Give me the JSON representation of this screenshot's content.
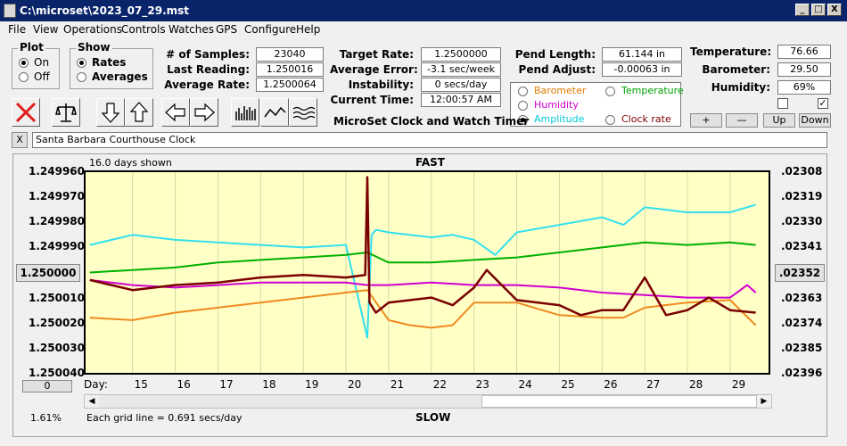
{
  "window": {
    "title": "C:\\microset\\2023_07_29.mst",
    "buttons": [
      "_",
      "□",
      "X"
    ]
  },
  "menu": [
    "File",
    "View",
    "Operations",
    "Controls",
    "Watches",
    "GPS",
    "Configure",
    "Help"
  ],
  "plot_group": {
    "legend": "Plot",
    "options": [
      "On",
      "Off"
    ],
    "selected": "On"
  },
  "show_group": {
    "legend": "Show",
    "options": [
      "Rates",
      "Averages"
    ],
    "selected": "Rates"
  },
  "stats1": [
    {
      "label": "# of Samples:",
      "value": "23040"
    },
    {
      "label": "Last Reading:",
      "value": "1.250016"
    },
    {
      "label": "Average Rate:",
      "value": "1.2500064"
    }
  ],
  "stats2": [
    {
      "label": "Target Rate:",
      "value": "1.2500000"
    },
    {
      "label": "Average Error:",
      "value": "-3.1 sec/week"
    },
    {
      "label": "Instability:",
      "value": "0 secs/day"
    },
    {
      "label": "Current Time:",
      "value": "12:00:57 AM"
    }
  ],
  "stats3": [
    {
      "label": "Pend Length:",
      "value": "61.144 in"
    },
    {
      "label": "Pend Adjust:",
      "value": "-0.00063 in"
    }
  ],
  "stats4": [
    {
      "label": "Temperature:",
      "value": "76.66"
    },
    {
      "label": "Barometer:",
      "value": "29.50"
    },
    {
      "label": "Humidity:",
      "value": "69%"
    }
  ],
  "app_name": "MicroSet Clock and Watch Timer",
  "series_select": {
    "options": [
      {
        "label": "Barometer",
        "color": "#e07b00",
        "selected": false
      },
      {
        "label": "Temperature",
        "color": "#00a000",
        "selected": false
      },
      {
        "label": "Humidity",
        "color": "#d000d0",
        "selected": false
      },
      {
        "label": "Amplitude",
        "color": "#00c8d8",
        "selected": true
      },
      {
        "label": "Clock rate",
        "color": "#800000",
        "selected": false
      }
    ]
  },
  "checkboxes": [
    {
      "checked": false
    },
    {
      "checked": true
    }
  ],
  "small_buttons": [
    "+",
    "—",
    "Up",
    "Down"
  ],
  "clock_name": "Santa Barbara Courthouse Clock",
  "close_label": "X",
  "zero_button": "0",
  "center_rate_button": "1.250000",
  "center_right_button": ".02352",
  "chart_info": {
    "days_shown": "16.0 days shown",
    "top": "FAST",
    "bottom": "SLOW",
    "grid_note": "Each grid line = 0.691 secs/day",
    "percent": "1.61%",
    "day_label": "Day:"
  },
  "chart_data": {
    "type": "line",
    "x_ticks": [
      15,
      16,
      17,
      18,
      19,
      20,
      21,
      22,
      23,
      24,
      25,
      26,
      27,
      28,
      29
    ],
    "x_range": [
      13.9,
      29.9
    ],
    "left_ticks": [
      "1.249960",
      "1.249970",
      "1.249980",
      "1.249990",
      "1.250010",
      "1.250020",
      "1.250030",
      "1.250040"
    ],
    "right_ticks": [
      ".02308",
      ".02319",
      ".02330",
      ".02341",
      ".02363",
      ".02374",
      ".02385",
      ".02396"
    ],
    "ylim": [
      1.24996,
      1.25004
    ],
    "series": [
      {
        "name": "Amplitude",
        "color": "#33e0f0",
        "x": [
          14.0,
          15.0,
          16.0,
          17.0,
          18.0,
          19.0,
          20.0,
          20.5,
          20.6,
          20.7,
          21.0,
          22.0,
          22.5,
          23.0,
          23.5,
          24.0,
          25.0,
          26.0,
          26.5,
          27.0,
          28.0,
          29.0,
          29.6
        ],
        "y": [
          1.249989,
          1.249985,
          1.249987,
          1.249988,
          1.249989,
          1.24999,
          1.249989,
          1.250026,
          1.249985,
          1.249983,
          1.249984,
          1.249986,
          1.249985,
          1.249987,
          1.249993,
          1.249984,
          1.249981,
          1.249978,
          1.249981,
          1.249974,
          1.249976,
          1.249976,
          1.249973
        ]
      },
      {
        "name": "Temperature",
        "color": "#00b000",
        "x": [
          14.0,
          15.0,
          16.0,
          17.0,
          18.0,
          19.0,
          20.0,
          20.5,
          21.0,
          22.0,
          23.0,
          24.0,
          25.0,
          26.0,
          27.0,
          28.0,
          29.0,
          29.6
        ],
        "y": [
          1.25,
          1.249999,
          1.249998,
          1.249996,
          1.249995,
          1.249994,
          1.249993,
          1.249992,
          1.249996,
          1.249996,
          1.249995,
          1.249994,
          1.249992,
          1.24999,
          1.249988,
          1.249989,
          1.249988,
          1.249989
        ]
      },
      {
        "name": "Humidity",
        "color": "#d000d0",
        "x": [
          14.0,
          15.0,
          16.0,
          17.0,
          18.0,
          19.0,
          20.0,
          20.5,
          21.0,
          22.0,
          23.0,
          24.0,
          25.0,
          26.0,
          27.0,
          28.0,
          29.0,
          29.4,
          29.6
        ],
        "y": [
          1.250003,
          1.250005,
          1.250006,
          1.250005,
          1.250004,
          1.250004,
          1.250004,
          1.250005,
          1.250005,
          1.250004,
          1.250005,
          1.250005,
          1.250006,
          1.250008,
          1.250009,
          1.25001,
          1.25001,
          1.250005,
          1.250008
        ]
      },
      {
        "name": "Barometer",
        "color": "#f08a20",
        "x": [
          14.0,
          15.0,
          16.0,
          17.0,
          18.0,
          19.0,
          20.0,
          20.5,
          21.0,
          21.5,
          22.0,
          22.5,
          23.0,
          24.0,
          25.0,
          26.0,
          26.5,
          27.0,
          28.0,
          29.0,
          29.6
        ],
        "y": [
          1.250018,
          1.250019,
          1.250016,
          1.250014,
          1.250012,
          1.25001,
          1.250008,
          1.250007,
          1.250019,
          1.250021,
          1.250022,
          1.250021,
          1.250012,
          1.250012,
          1.250017,
          1.250018,
          1.250018,
          1.250014,
          1.250012,
          1.250011,
          1.250021
        ]
      },
      {
        "name": "Clock rate",
        "color": "#7a0000",
        "x": [
          14.0,
          15.0,
          16.0,
          17.0,
          18.0,
          19.0,
          20.0,
          20.45,
          20.5,
          20.55,
          20.7,
          21.0,
          22.0,
          22.5,
          23.0,
          23.3,
          24.0,
          25.0,
          25.5,
          26.0,
          26.5,
          27.0,
          27.5,
          28.0,
          28.5,
          29.0,
          29.6
        ],
        "y": [
          1.250003,
          1.250007,
          1.250005,
          1.250004,
          1.250002,
          1.250001,
          1.250002,
          1.250001,
          1.249962,
          1.250012,
          1.250016,
          1.250012,
          1.25001,
          1.250013,
          1.250006,
          1.249999,
          1.250011,
          1.250013,
          1.250017,
          1.250015,
          1.250015,
          1.250002,
          1.250017,
          1.250015,
          1.25001,
          1.250015,
          1.250016
        ]
      }
    ]
  }
}
